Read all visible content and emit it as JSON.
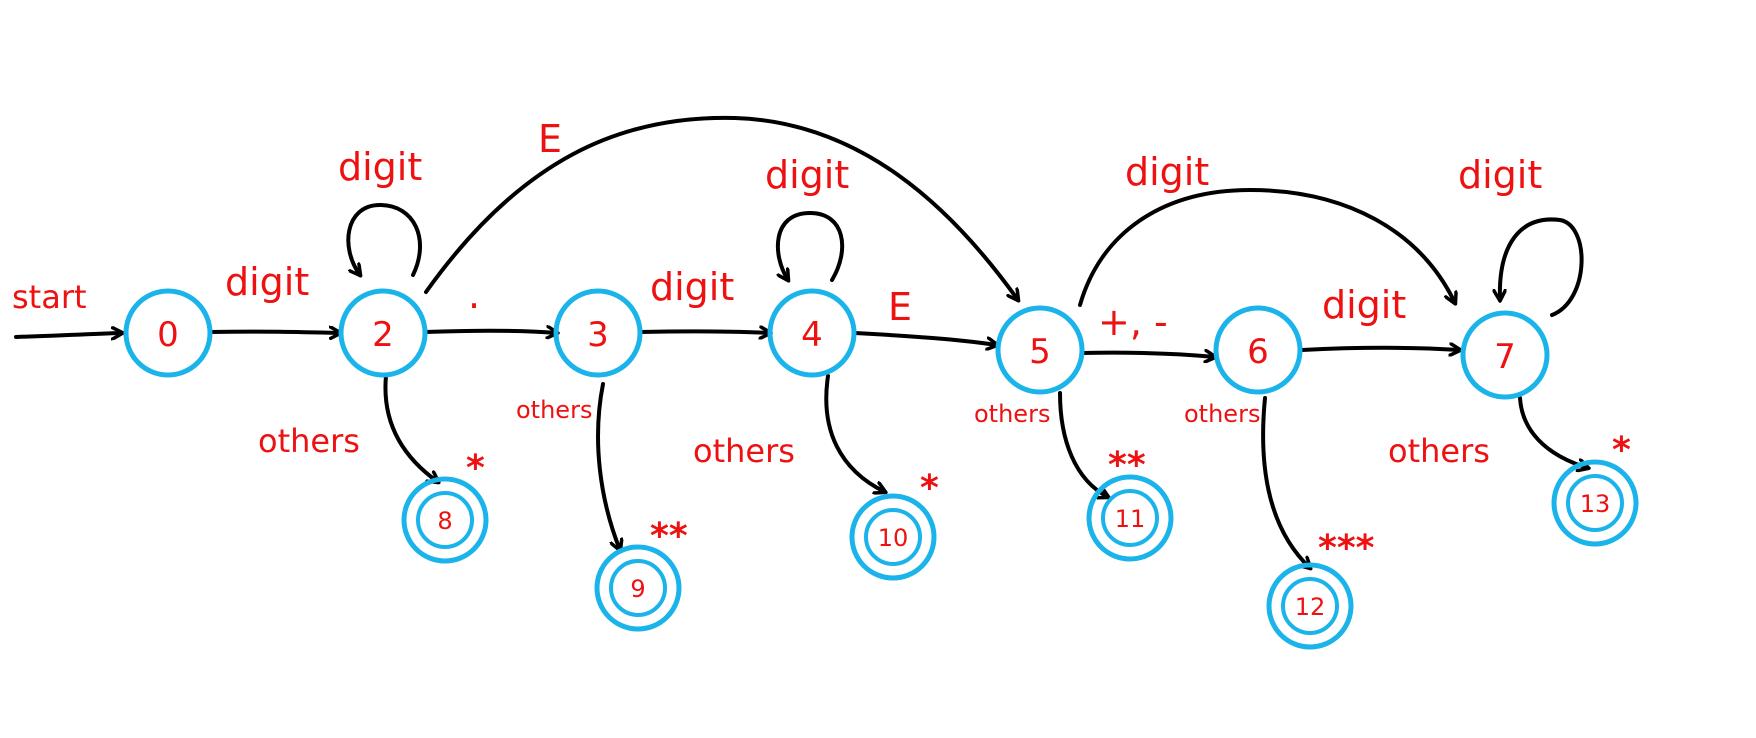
{
  "start_label": "start",
  "states": {
    "s0": "0",
    "s2": "2",
    "s3": "3",
    "s4": "4",
    "s5": "5",
    "s6": "6",
    "s7": "7",
    "s8": "8",
    "s9": "9",
    "s10": "10",
    "s11": "11",
    "s12": "12",
    "s13": "13"
  },
  "transitions": {
    "t0_2": "digit",
    "t2_2": "digit",
    "t2_3": ".",
    "t2_5": "E",
    "t3_4": "digit",
    "t4_4": "digit",
    "t4_5": "E",
    "t5_6": "+, -",
    "t5_7": "digit",
    "t6_7": "digit",
    "t7_7": "digit",
    "t2_8": "others",
    "t3_9": "others",
    "t4_10": "others",
    "t5_11": "others",
    "t6_12": "others",
    "t7_13": "others"
  },
  "retract_marks": {
    "s8": "*",
    "s9": "**",
    "s10": "*",
    "s11": "**",
    "s12": "***",
    "s13": "*"
  },
  "colors": {
    "state": "#1ab4ea",
    "label": "#ee1111",
    "edge": "#000000"
  }
}
